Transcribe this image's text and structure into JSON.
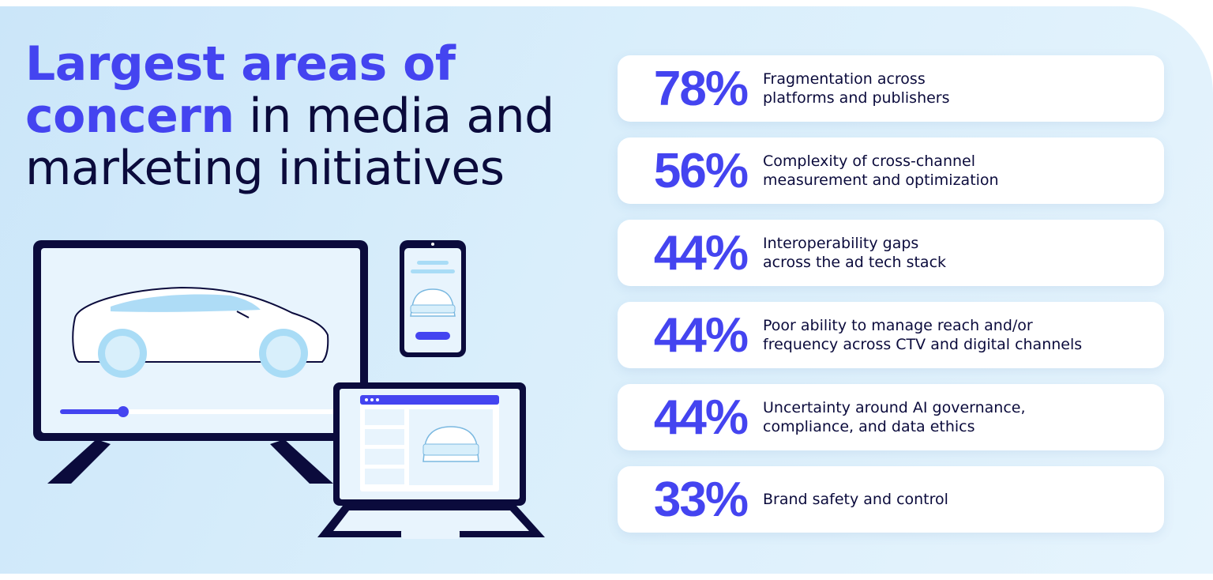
{
  "headline": {
    "highlight": "Largest areas of\nconcern",
    "rest": " in media and marketing initiatives"
  },
  "chart_data": {
    "type": "table",
    "title": "Largest areas of concern in media and marketing initiatives",
    "unit": "%",
    "items": [
      {
        "value": 78,
        "display": "78%",
        "label": "Fragmentation across\nplatforms and publishers"
      },
      {
        "value": 56,
        "display": "56%",
        "label": "Complexity of cross-channel\nmeasurement and optimization"
      },
      {
        "value": 44,
        "display": "44%",
        "label": "Interoperability gaps\nacross the ad tech stack"
      },
      {
        "value": 44,
        "display": "44%",
        "label": "Poor ability to manage reach and/or\nfrequency across CTV and digital channels"
      },
      {
        "value": 44,
        "display": "44%",
        "label": "Uncertainty around AI governance,\ncompliance, and data ethics"
      },
      {
        "value": 33,
        "display": "33%",
        "label": "Brand safety and control"
      }
    ]
  },
  "colors": {
    "accent": "#4444f0",
    "ink": "#0b0b3c",
    "background": "#d6ecfa"
  },
  "icons": [
    "tv-icon",
    "smartphone-icon",
    "laptop-icon",
    "car-icon"
  ]
}
